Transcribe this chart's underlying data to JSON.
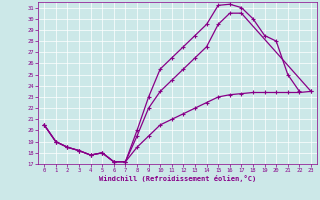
{
  "xlabel": "Windchill (Refroidissement éolien,°C)",
  "background_color": "#cce8e8",
  "line_color": "#880088",
  "grid_color": "#ffffff",
  "yticks": [
    17,
    18,
    19,
    20,
    21,
    22,
    23,
    24,
    25,
    26,
    27,
    28,
    29,
    30,
    31
  ],
  "xticks": [
    0,
    1,
    2,
    3,
    4,
    5,
    6,
    7,
    8,
    9,
    10,
    11,
    12,
    13,
    14,
    15,
    16,
    17,
    18,
    19,
    20,
    21,
    22,
    23
  ],
  "line1_x": [
    0,
    1,
    2,
    3,
    4,
    5,
    6,
    7,
    8,
    9,
    10,
    11,
    12,
    13,
    14,
    15,
    16,
    17,
    18,
    19,
    20,
    21,
    22
  ],
  "line1_y": [
    20.5,
    19.0,
    18.5,
    18.2,
    17.8,
    18.0,
    17.2,
    17.2,
    20.0,
    23.0,
    25.5,
    26.5,
    27.5,
    28.5,
    29.5,
    31.2,
    31.3,
    31.0,
    30.0,
    28.5,
    28.0,
    25.0,
    23.5
  ],
  "line2_x": [
    0,
    1,
    2,
    3,
    4,
    5,
    6,
    7,
    8,
    9,
    10,
    11,
    12,
    13,
    14,
    15,
    16,
    17,
    23
  ],
  "line2_y": [
    20.5,
    19.0,
    18.5,
    18.2,
    17.8,
    18.0,
    17.2,
    17.2,
    19.5,
    22.0,
    23.5,
    24.5,
    25.5,
    26.5,
    27.5,
    29.5,
    30.5,
    30.5,
    23.5
  ],
  "line3_x": [
    0,
    1,
    2,
    3,
    4,
    5,
    6,
    7,
    8,
    9,
    10,
    11,
    12,
    13,
    14,
    15,
    16,
    17,
    18,
    19,
    20,
    21,
    22,
    23
  ],
  "line3_y": [
    20.5,
    19.0,
    18.5,
    18.2,
    17.8,
    18.0,
    17.2,
    17.2,
    18.5,
    19.5,
    20.5,
    21.0,
    21.5,
    22.0,
    22.5,
    23.0,
    23.2,
    23.3,
    23.4,
    23.4,
    23.4,
    23.4,
    23.4,
    23.5
  ]
}
